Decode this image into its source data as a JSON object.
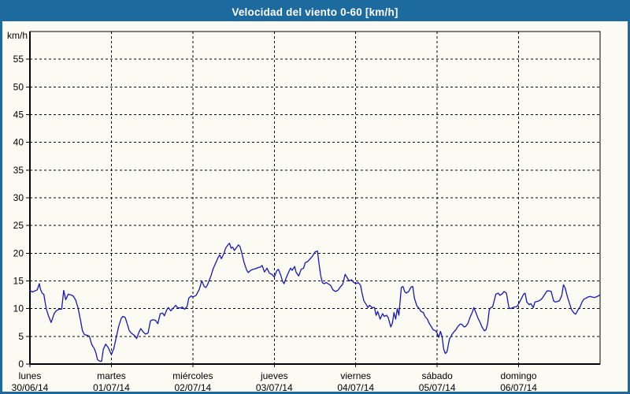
{
  "colors": {
    "titlebar_background": "#1C6A9E",
    "window_border": "#1C6A9E",
    "page_background": "#FBFBF3",
    "axis": "#000000",
    "grid": "#000000",
    "text": "#000000",
    "title_text": "#FFFFFF",
    "line": "#1717BE"
  },
  "chart_data": {
    "type": "line",
    "title": "Velocidad del viento 0-60 [km/h]",
    "y_unit": "km/h",
    "ylim": [
      0,
      60
    ],
    "xlim_days": [
      0,
      7
    ],
    "grid": "dashed",
    "legend": "none",
    "line_color": "#1717BE",
    "y_ticks": [
      0,
      5,
      10,
      15,
      20,
      25,
      30,
      35,
      40,
      45,
      50,
      55
    ],
    "x_categories": [
      {
        "weekday": "lunes",
        "date": "30/06/14"
      },
      {
        "weekday": "martes",
        "date": "01/07/14"
      },
      {
        "weekday": "miércoles",
        "date": "02/07/14"
      },
      {
        "weekday": "jueves",
        "date": "03/07/14"
      },
      {
        "weekday": "viernes",
        "date": "04/07/14"
      },
      {
        "weekday": "sábado",
        "date": "05/07/14"
      },
      {
        "weekday": "domingo",
        "date": "06/07/14"
      }
    ],
    "series": [
      {
        "points": [
          [
            0.0,
            13.3
          ],
          [
            0.03,
            13.0
          ],
          [
            0.06,
            13.2
          ],
          [
            0.09,
            13.4
          ],
          [
            0.115,
            14.5
          ],
          [
            0.13,
            13.5
          ],
          [
            0.15,
            12.8
          ],
          [
            0.17,
            12.6
          ],
          [
            0.2,
            10.0
          ],
          [
            0.23,
            8.6
          ],
          [
            0.26,
            7.5
          ],
          [
            0.3,
            9.2
          ],
          [
            0.33,
            9.7
          ],
          [
            0.36,
            9.9
          ],
          [
            0.39,
            9.9
          ],
          [
            0.415,
            13.3
          ],
          [
            0.44,
            11.6
          ],
          [
            0.47,
            12.6
          ],
          [
            0.5,
            12.5
          ],
          [
            0.53,
            12.3
          ],
          [
            0.56,
            11.6
          ],
          [
            0.59,
            10.2
          ],
          [
            0.62,
            8.0
          ],
          [
            0.645,
            6.0
          ],
          [
            0.67,
            5.3
          ],
          [
            0.7,
            5.2
          ],
          [
            0.73,
            5.0
          ],
          [
            0.76,
            3.5
          ],
          [
            0.79,
            2.8
          ],
          [
            0.81,
            2.0
          ],
          [
            0.83,
            0.8
          ],
          [
            0.86,
            0.5
          ],
          [
            0.88,
            0.5
          ],
          [
            0.9,
            2.6
          ],
          [
            0.93,
            3.6
          ],
          [
            0.96,
            3.0
          ],
          [
            1.0,
            1.7
          ],
          [
            1.03,
            2.8
          ],
          [
            1.06,
            4.8
          ],
          [
            1.09,
            6.8
          ],
          [
            1.12,
            8.2
          ],
          [
            1.14,
            8.6
          ],
          [
            1.17,
            8.4
          ],
          [
            1.2,
            7.0
          ],
          [
            1.22,
            6.0
          ],
          [
            1.25,
            5.5
          ],
          [
            1.28,
            5.2
          ],
          [
            1.31,
            4.6
          ],
          [
            1.34,
            5.8
          ],
          [
            1.36,
            6.4
          ],
          [
            1.39,
            5.8
          ],
          [
            1.42,
            5.4
          ],
          [
            1.45,
            5.6
          ],
          [
            1.48,
            7.8
          ],
          [
            1.51,
            8.0
          ],
          [
            1.54,
            7.9
          ],
          [
            1.57,
            7.3
          ],
          [
            1.6,
            9.1
          ],
          [
            1.63,
            9.2
          ],
          [
            1.65,
            8.7
          ],
          [
            1.68,
            9.8
          ],
          [
            1.7,
            10.2
          ],
          [
            1.73,
            9.6
          ],
          [
            1.76,
            10.1
          ],
          [
            1.79,
            10.6
          ],
          [
            1.81,
            10.2
          ],
          [
            1.84,
            10.1
          ],
          [
            1.87,
            10.3
          ],
          [
            1.9,
            9.9
          ],
          [
            1.93,
            10.4
          ],
          [
            1.95,
            11.9
          ],
          [
            1.98,
            12.3
          ],
          [
            2.0,
            12.1
          ],
          [
            2.04,
            12.4
          ],
          [
            2.08,
            13.5
          ],
          [
            2.11,
            15.0
          ],
          [
            2.14,
            14.0
          ],
          [
            2.16,
            13.8
          ],
          [
            2.18,
            14.3
          ],
          [
            2.22,
            15.8
          ],
          [
            2.25,
            17.2
          ],
          [
            2.28,
            18.2
          ],
          [
            2.31,
            19.2
          ],
          [
            2.33,
            19.7
          ],
          [
            2.35,
            19.0
          ],
          [
            2.38,
            19.9
          ],
          [
            2.4,
            20.8
          ],
          [
            2.43,
            21.5
          ],
          [
            2.45,
            21.8
          ],
          [
            2.47,
            20.9
          ],
          [
            2.49,
            21.1
          ],
          [
            2.51,
            20.5
          ],
          [
            2.53,
            20.9
          ],
          [
            2.56,
            21.5
          ],
          [
            2.58,
            21.2
          ],
          [
            2.6,
            20.1
          ],
          [
            2.63,
            18.3
          ],
          [
            2.66,
            17.0
          ],
          [
            2.68,
            16.5
          ],
          [
            2.71,
            16.9
          ],
          [
            2.74,
            17.1
          ],
          [
            2.77,
            17.2
          ],
          [
            2.8,
            17.4
          ],
          [
            2.83,
            17.5
          ],
          [
            2.85,
            17.8
          ],
          [
            2.88,
            16.6
          ],
          [
            2.91,
            17.3
          ],
          [
            2.94,
            16.4
          ],
          [
            2.97,
            16.2
          ],
          [
            3.0,
            15.7
          ],
          [
            3.03,
            16.8
          ],
          [
            3.05,
            17.1
          ],
          [
            3.08,
            16.0
          ],
          [
            3.1,
            15.0
          ],
          [
            3.12,
            14.5
          ],
          [
            3.15,
            15.7
          ],
          [
            3.18,
            16.7
          ],
          [
            3.2,
            17.3
          ],
          [
            3.22,
            16.9
          ],
          [
            3.25,
            17.6
          ],
          [
            3.27,
            16.5
          ],
          [
            3.3,
            15.9
          ],
          [
            3.33,
            17.1
          ],
          [
            3.36,
            17.3
          ],
          [
            3.38,
            18.3
          ],
          [
            3.41,
            18.5
          ],
          [
            3.44,
            19.0
          ],
          [
            3.47,
            19.5
          ],
          [
            3.5,
            20.2
          ],
          [
            3.53,
            20.4
          ],
          [
            3.55,
            18.0
          ],
          [
            3.57,
            16.0
          ],
          [
            3.59,
            14.7
          ],
          [
            3.61,
            14.5
          ],
          [
            3.64,
            14.7
          ],
          [
            3.66,
            14.5
          ],
          [
            3.69,
            14.2
          ],
          [
            3.72,
            13.4
          ],
          [
            3.75,
            13.1
          ],
          [
            3.78,
            13.3
          ],
          [
            3.81,
            13.9
          ],
          [
            3.84,
            14.4
          ],
          [
            3.87,
            16.2
          ],
          [
            3.89,
            15.7
          ],
          [
            3.92,
            15.0
          ],
          [
            3.95,
            15.2
          ],
          [
            3.97,
            14.8
          ],
          [
            4.0,
            14.5
          ],
          [
            4.03,
            14.7
          ],
          [
            4.06,
            14.2
          ],
          [
            4.08,
            12.6
          ],
          [
            4.1,
            11.4
          ],
          [
            4.13,
            10.7
          ],
          [
            4.15,
            10.2
          ],
          [
            4.17,
            10.6
          ],
          [
            4.2,
            10.2
          ],
          [
            4.23,
            10.2
          ],
          [
            4.25,
            8.8
          ],
          [
            4.27,
            9.5
          ],
          [
            4.3,
            8.1
          ],
          [
            4.33,
            9.1
          ],
          [
            4.35,
            8.6
          ],
          [
            4.38,
            8.8
          ],
          [
            4.4,
            8.3
          ],
          [
            4.43,
            6.7
          ],
          [
            4.45,
            7.4
          ],
          [
            4.47,
            9.3
          ],
          [
            4.49,
            8.1
          ],
          [
            4.51,
            10.0
          ],
          [
            4.53,
            8.8
          ],
          [
            4.56,
            13.8
          ],
          [
            4.58,
            14.0
          ],
          [
            4.6,
            13.1
          ],
          [
            4.62,
            12.8
          ],
          [
            4.65,
            13.1
          ],
          [
            4.68,
            13.9
          ],
          [
            4.7,
            14.0
          ],
          [
            4.72,
            11.9
          ],
          [
            4.75,
            10.5
          ],
          [
            4.78,
            10.0
          ],
          [
            4.8,
            9.5
          ],
          [
            4.83,
            9.3
          ],
          [
            4.85,
            8.6
          ],
          [
            4.88,
            8.1
          ],
          [
            4.9,
            7.4
          ],
          [
            4.93,
            6.7
          ],
          [
            4.95,
            6.2
          ],
          [
            4.98,
            6.0
          ],
          [
            5.0,
            5.6
          ],
          [
            5.02,
            4.8
          ],
          [
            5.04,
            5.9
          ],
          [
            5.06,
            5.0
          ],
          [
            5.08,
            2.7
          ],
          [
            5.1,
            1.9
          ],
          [
            5.12,
            2.2
          ],
          [
            5.15,
            4.5
          ],
          [
            5.18,
            5.3
          ],
          [
            5.2,
            5.7
          ],
          [
            5.23,
            6.2
          ],
          [
            5.25,
            6.7
          ],
          [
            5.28,
            7.2
          ],
          [
            5.3,
            7.2
          ],
          [
            5.33,
            6.7
          ],
          [
            5.35,
            6.8
          ],
          [
            5.38,
            7.4
          ],
          [
            5.4,
            8.3
          ],
          [
            5.43,
            9.3
          ],
          [
            5.45,
            10.2
          ],
          [
            5.48,
            9.1
          ],
          [
            5.5,
            8.3
          ],
          [
            5.53,
            7.4
          ],
          [
            5.55,
            6.7
          ],
          [
            5.58,
            6.0
          ],
          [
            5.6,
            6.2
          ],
          [
            5.62,
            7.4
          ],
          [
            5.64,
            9.8
          ],
          [
            5.66,
            10.2
          ],
          [
            5.68,
            10.3
          ],
          [
            5.7,
            11.4
          ],
          [
            5.72,
            12.6
          ],
          [
            5.75,
            12.8
          ],
          [
            5.77,
            12.4
          ],
          [
            5.8,
            12.7
          ],
          [
            5.82,
            13.1
          ],
          [
            5.85,
            12.8
          ],
          [
            5.88,
            10.2
          ],
          [
            5.9,
            10.0
          ],
          [
            5.93,
            10.2
          ],
          [
            5.95,
            10.3
          ],
          [
            5.98,
            10.4
          ],
          [
            6.0,
            10.9
          ],
          [
            6.03,
            11.7
          ],
          [
            6.06,
            12.6
          ],
          [
            6.08,
            12.8
          ],
          [
            6.1,
            11.2
          ],
          [
            6.13,
            10.7
          ],
          [
            6.15,
            10.9
          ],
          [
            6.18,
            10.2
          ],
          [
            6.2,
            11.2
          ],
          [
            6.23,
            11.3
          ],
          [
            6.25,
            11.4
          ],
          [
            6.28,
            11.7
          ],
          [
            6.3,
            12.1
          ],
          [
            6.33,
            12.8
          ],
          [
            6.35,
            13.2
          ],
          [
            6.38,
            13.2
          ],
          [
            6.4,
            13.1
          ],
          [
            6.43,
            11.4
          ],
          [
            6.45,
            11.2
          ],
          [
            6.48,
            11.3
          ],
          [
            6.5,
            11.4
          ],
          [
            6.53,
            12.4
          ],
          [
            6.55,
            14.3
          ],
          [
            6.57,
            13.8
          ],
          [
            6.6,
            12.1
          ],
          [
            6.63,
            10.7
          ],
          [
            6.65,
            9.8
          ],
          [
            6.68,
            9.2
          ],
          [
            6.7,
            9.0
          ],
          [
            6.73,
            9.8
          ],
          [
            6.75,
            10.2
          ],
          [
            6.78,
            11.2
          ],
          [
            6.8,
            11.7
          ],
          [
            6.83,
            11.9
          ],
          [
            6.85,
            12.1
          ],
          [
            6.88,
            12.2
          ],
          [
            6.9,
            12.1
          ],
          [
            6.93,
            12.0
          ],
          [
            6.95,
            12.1
          ],
          [
            6.98,
            12.3
          ],
          [
            7.0,
            12.5
          ]
        ]
      }
    ]
  }
}
